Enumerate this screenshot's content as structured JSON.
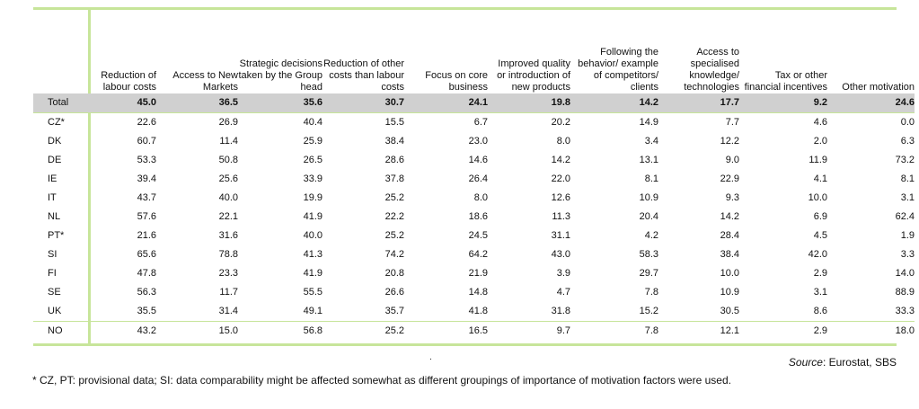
{
  "table": {
    "columns": [
      "Reduction of labour costs",
      "Access to New Markets",
      "Strategic decisions taken by the Group head",
      "Reduction of other costs than labour costs",
      "Focus on core business",
      "Improved quality or introduction of new products",
      "Following the behavior/ example of competitors/ clients",
      "Access to specialised knowledge/ technologies",
      "Tax or other financial incentives",
      "Other motivation"
    ],
    "rows": [
      {
        "label": "Total",
        "values": [
          "45.0",
          "36.5",
          "35.6",
          "30.7",
          "24.1",
          "19.8",
          "14.2",
          "17.7",
          "9.2",
          "24.6"
        ]
      },
      {
        "label": "CZ*",
        "values": [
          "22.6",
          "26.9",
          "40.4",
          "15.5",
          "6.7",
          "20.2",
          "14.9",
          "7.7",
          "4.6",
          "0.0"
        ]
      },
      {
        "label": "DK",
        "values": [
          "60.7",
          "11.4",
          "25.9",
          "38.4",
          "23.0",
          "8.0",
          "3.4",
          "12.2",
          "2.0",
          "6.3"
        ]
      },
      {
        "label": "DE",
        "values": [
          "53.3",
          "50.8",
          "26.5",
          "28.6",
          "14.6",
          "14.2",
          "13.1",
          "9.0",
          "11.9",
          "73.2"
        ]
      },
      {
        "label": "IE",
        "values": [
          "39.4",
          "25.6",
          "33.9",
          "37.8",
          "26.4",
          "22.0",
          "8.1",
          "22.9",
          "4.1",
          "8.1"
        ]
      },
      {
        "label": "IT",
        "values": [
          "43.7",
          "40.0",
          "19.9",
          "25.2",
          "8.0",
          "12.6",
          "10.9",
          "9.3",
          "10.0",
          "3.1"
        ]
      },
      {
        "label": "NL",
        "values": [
          "57.6",
          "22.1",
          "41.9",
          "22.2",
          "18.6",
          "11.3",
          "20.4",
          "14.2",
          "6.9",
          "62.4"
        ]
      },
      {
        "label": "PT*",
        "values": [
          "21.6",
          "31.6",
          "40.0",
          "25.2",
          "24.5",
          "31.1",
          "4.2",
          "28.4",
          "4.5",
          "1.9"
        ]
      },
      {
        "label": "SI",
        "values": [
          "65.6",
          "78.8",
          "41.3",
          "74.2",
          "64.2",
          "43.0",
          "58.3",
          "38.4",
          "42.0",
          "3.3"
        ]
      },
      {
        "label": "FI",
        "values": [
          "47.8",
          "23.3",
          "41.9",
          "20.8",
          "21.9",
          "3.9",
          "29.7",
          "10.0",
          "2.9",
          "14.0"
        ]
      },
      {
        "label": "SE",
        "values": [
          "56.3",
          "11.7",
          "55.5",
          "26.6",
          "14.8",
          "4.7",
          "7.8",
          "10.9",
          "3.1",
          "88.9"
        ]
      },
      {
        "label": "UK",
        "values": [
          "35.5",
          "31.4",
          "49.1",
          "35.7",
          "41.8",
          "31.8",
          "15.2",
          "30.5",
          "8.6",
          "33.3"
        ]
      },
      {
        "label": "NO",
        "values": [
          "43.2",
          "15.0",
          "56.8",
          "25.2",
          "16.5",
          "9.7",
          "7.8",
          "12.1",
          "2.9",
          "18.0"
        ]
      }
    ]
  },
  "source": {
    "label": "Source",
    "text": ": Eurostat, SBS"
  },
  "dot": ".",
  "footnote": "* CZ, PT: provisional data; SI: data comparability might be affected somewhat as different groupings of importance of motivation factors were used.",
  "colors": {
    "accent": "#c7e59a",
    "total_row": "#d0d0d0"
  }
}
